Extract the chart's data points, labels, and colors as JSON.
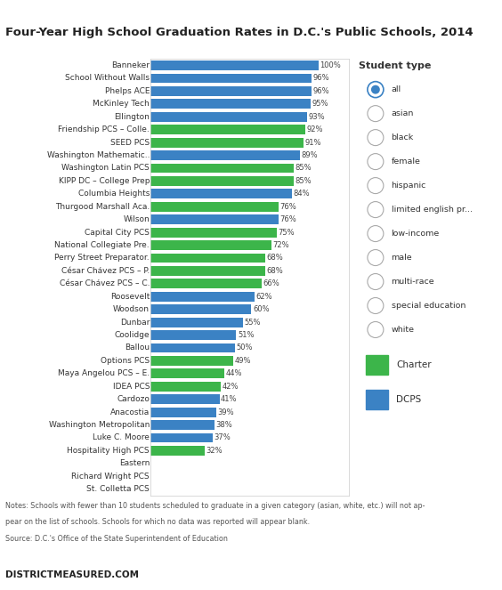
{
  "title": "Four-Year High School Graduation Rates in D.C.'s Public Schools, 2014",
  "schools": [
    {
      "name": "Banneker",
      "value": 100,
      "type": "DCPS"
    },
    {
      "name": "School Without Walls",
      "value": 96,
      "type": "DCPS"
    },
    {
      "name": "Phelps ACE",
      "value": 96,
      "type": "DCPS"
    },
    {
      "name": "McKinley Tech",
      "value": 95,
      "type": "DCPS"
    },
    {
      "name": "Ellington",
      "value": 93,
      "type": "DCPS"
    },
    {
      "name": "Friendship PCS – Colle.",
      "value": 92,
      "type": "Charter"
    },
    {
      "name": "SEED PCS",
      "value": 91,
      "type": "Charter"
    },
    {
      "name": "Washington Mathematic..",
      "value": 89,
      "type": "DCPS"
    },
    {
      "name": "Washington Latin PCS",
      "value": 85,
      "type": "Charter"
    },
    {
      "name": "KIPP DC – College Prep",
      "value": 85,
      "type": "Charter"
    },
    {
      "name": "Columbia Heights",
      "value": 84,
      "type": "DCPS"
    },
    {
      "name": "Thurgood Marshall Aca.",
      "value": 76,
      "type": "Charter"
    },
    {
      "name": "Wilson",
      "value": 76,
      "type": "DCPS"
    },
    {
      "name": "Capital City PCS",
      "value": 75,
      "type": "Charter"
    },
    {
      "name": "National Collegiate Pre.",
      "value": 72,
      "type": "Charter"
    },
    {
      "name": "Perry Street Preparator.",
      "value": 68,
      "type": "Charter"
    },
    {
      "name": "César Chávez PCS – P.",
      "value": 68,
      "type": "Charter"
    },
    {
      "name": "César Chávez PCS – C.",
      "value": 66,
      "type": "Charter"
    },
    {
      "name": "Roosevelt",
      "value": 62,
      "type": "DCPS"
    },
    {
      "name": "Woodson",
      "value": 60,
      "type": "DCPS"
    },
    {
      "name": "Dunbar",
      "value": 55,
      "type": "DCPS"
    },
    {
      "name": "Coolidge",
      "value": 51,
      "type": "DCPS"
    },
    {
      "name": "Ballou",
      "value": 50,
      "type": "DCPS"
    },
    {
      "name": "Options PCS",
      "value": 49,
      "type": "Charter"
    },
    {
      "name": "Maya Angelou PCS – E.",
      "value": 44,
      "type": "Charter"
    },
    {
      "name": "IDEA PCS",
      "value": 42,
      "type": "Charter"
    },
    {
      "name": "Cardozo",
      "value": 41,
      "type": "DCPS"
    },
    {
      "name": "Anacostia",
      "value": 39,
      "type": "DCPS"
    },
    {
      "name": "Washington Metropolitan",
      "value": 38,
      "type": "DCPS"
    },
    {
      "name": "Luke C. Moore",
      "value": 37,
      "type": "DCPS"
    },
    {
      "name": "Hospitality High PCS",
      "value": 32,
      "type": "Charter"
    },
    {
      "name": "Eastern",
      "value": 0,
      "type": "DCPS"
    },
    {
      "name": "Richard Wright PCS",
      "value": 0,
      "type": "Charter"
    },
    {
      "name": "St. Colletta PCS",
      "value": 0,
      "type": "Charter"
    }
  ],
  "charter_color": "#3CB54A",
  "dcps_color": "#3B82C4",
  "background_color": "#ffffff",
  "note_line1": "Notes: Schools with fewer than 10 students scheduled to graduate in a given category (asian, white, etc.) will not ap-",
  "note_line2": "pear on the list of schools. Schools for which no data was reported will appear blank.",
  "note_line3": "Source: D.C.'s Office of the State Superintendent of Education",
  "footer_text": "DISTRICTMEASURED.COM",
  "student_types": [
    "all",
    "asian",
    "black",
    "female",
    "hispanic",
    "limited english pr...",
    "low-income",
    "male",
    "multi-race",
    "special education",
    "white"
  ],
  "selected_student_type": "all",
  "radio_selected_color": "#3B82C4",
  "radio_unselected_color": "#AAAAAA"
}
